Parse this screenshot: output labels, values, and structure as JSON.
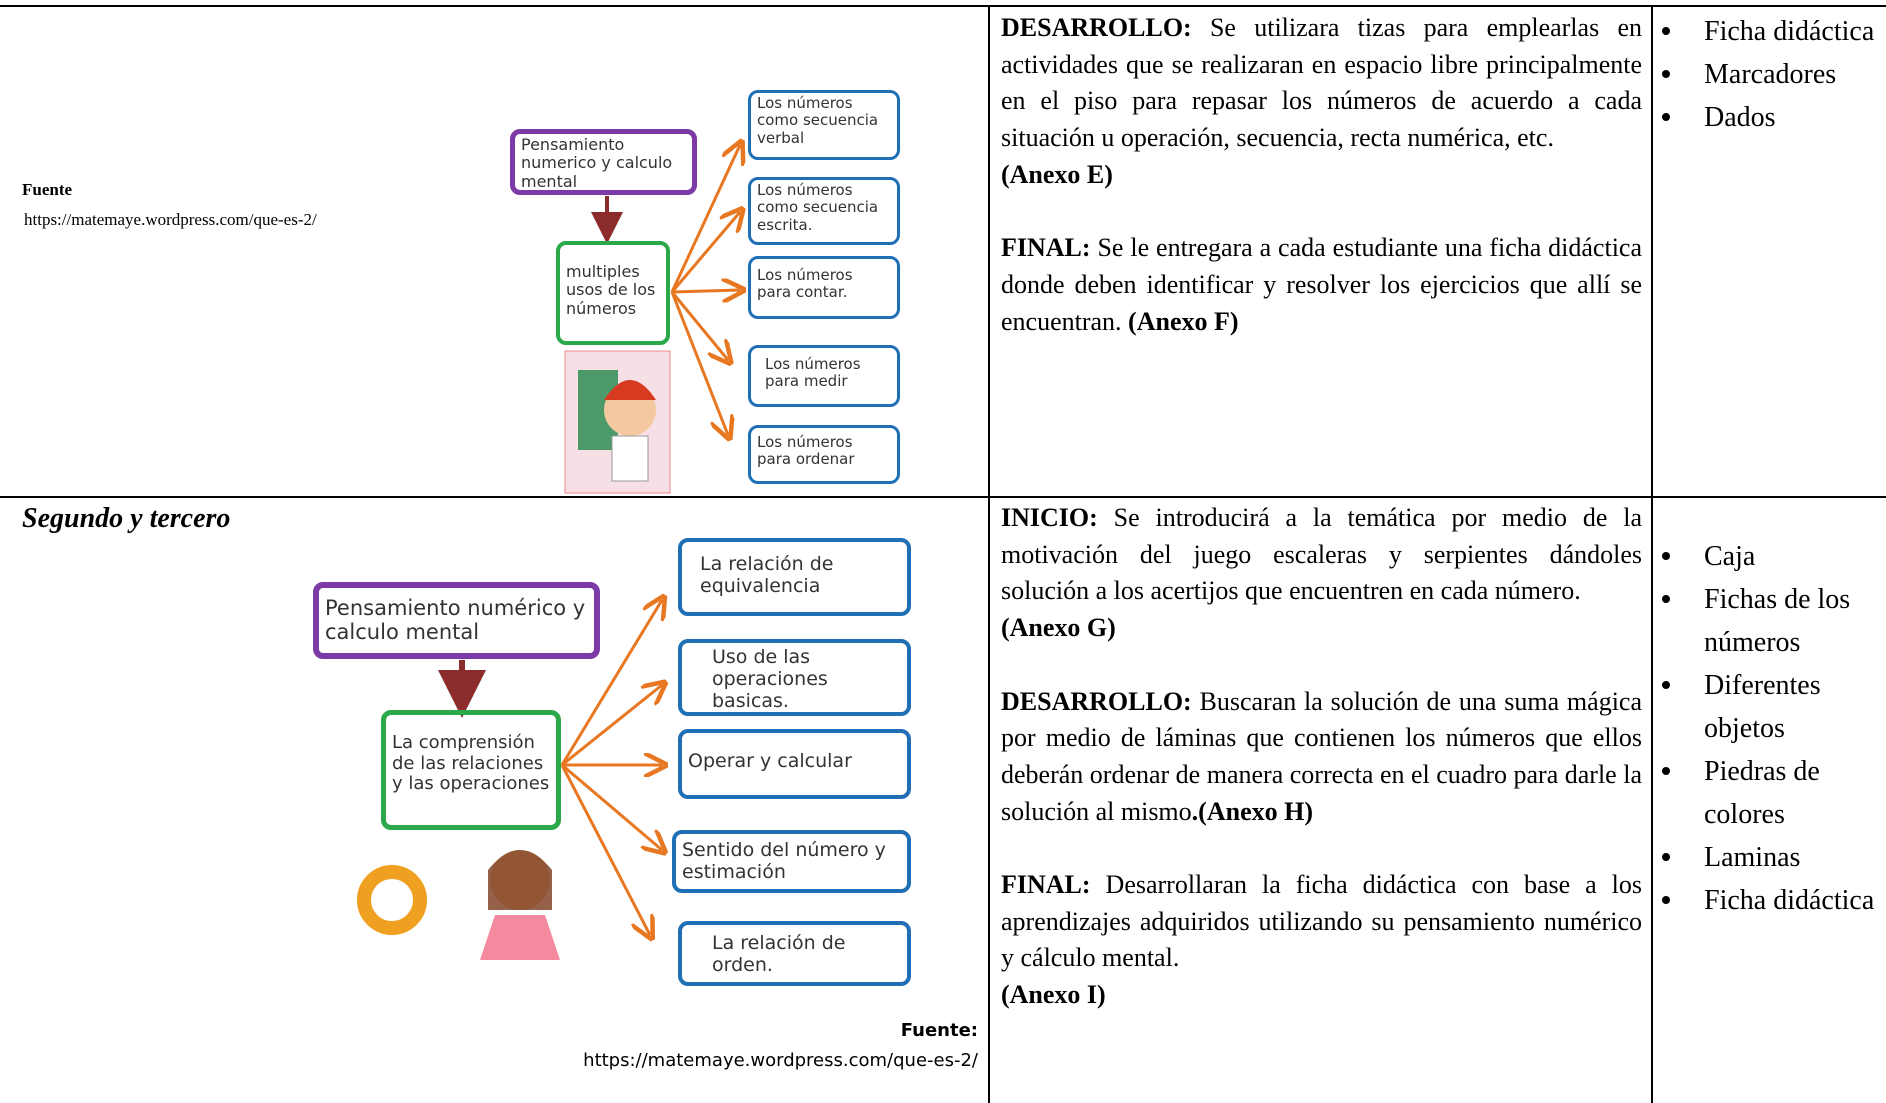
{
  "rows": [
    {
      "source_label": "Fuente",
      "source_url": "https://matemaye.wordpress.com/que-es-2/",
      "diagram": {
        "root": "Pensamiento numerico y calculo mental",
        "center": "multiples usos de los números",
        "branches": [
          "Los números como secuencia verbal",
          "Los números como secuencia escrita.",
          "Los números para contar.",
          "Los números para medir",
          "Los números para ordenar"
        ]
      },
      "activities": [
        {
          "heading": "DESARROLLO:",
          "text": "Se utilizara tizas para emplearlas en actividades que se realizaran en espacio libre principalmente en el piso para repasar los números de acuerdo a cada situación u operación, secuencia, recta numérica, etc.",
          "annex": "(Anexo E)"
        },
        {
          "heading": "FINAL:",
          "text": "Se le entregara a cada estudiante una ficha didáctica donde deben identificar y resolver los ejercicios que allí se encuentran.",
          "annex": "(Anexo F)"
        }
      ],
      "resources": [
        "Ficha didáctica",
        "Marcadores",
        "Dados"
      ]
    },
    {
      "grade": "Segundo y tercero",
      "source_label": "Fuente:",
      "source_url": "https://matemaye.wordpress.com/que-es-2/",
      "diagram": {
        "root": "Pensamiento numérico y calculo mental",
        "center": "La comprensión de las relaciones y las operaciones",
        "branches": [
          "La relación de equivalencia",
          "Uso de las operaciones basicas.",
          "Operar y calcular",
          "Sentido del número y estimación",
          "La relación de orden."
        ]
      },
      "activities": [
        {
          "heading": "INICIO:",
          "text": "Se introducirá a la temática por medio de la motivación del juego escaleras y serpientes dándoles solución a los acertijos que encuentren en cada número.",
          "annex": "(Anexo G)"
        },
        {
          "heading": "DESARROLLO:",
          "text": "Buscaran la solución de una suma mágica por medio de láminas que contienen los números que ellos deberán ordenar de manera correcta en el cuadro para darle la solución al mismo",
          "annex": ".(Anexo H)"
        },
        {
          "heading": "FINAL:",
          "text": "Desarrollaran la ficha didáctica con base a los aprendizajes adquiridos utilizando su pensamiento numérico y cálculo mental.",
          "annex": "(Anexo I)"
        }
      ],
      "resources": [
        "Caja",
        "Fichas de los números",
        "Diferentes objetos",
        "Piedras de colores",
        "Laminas",
        "Ficha didáctica"
      ]
    }
  ]
}
